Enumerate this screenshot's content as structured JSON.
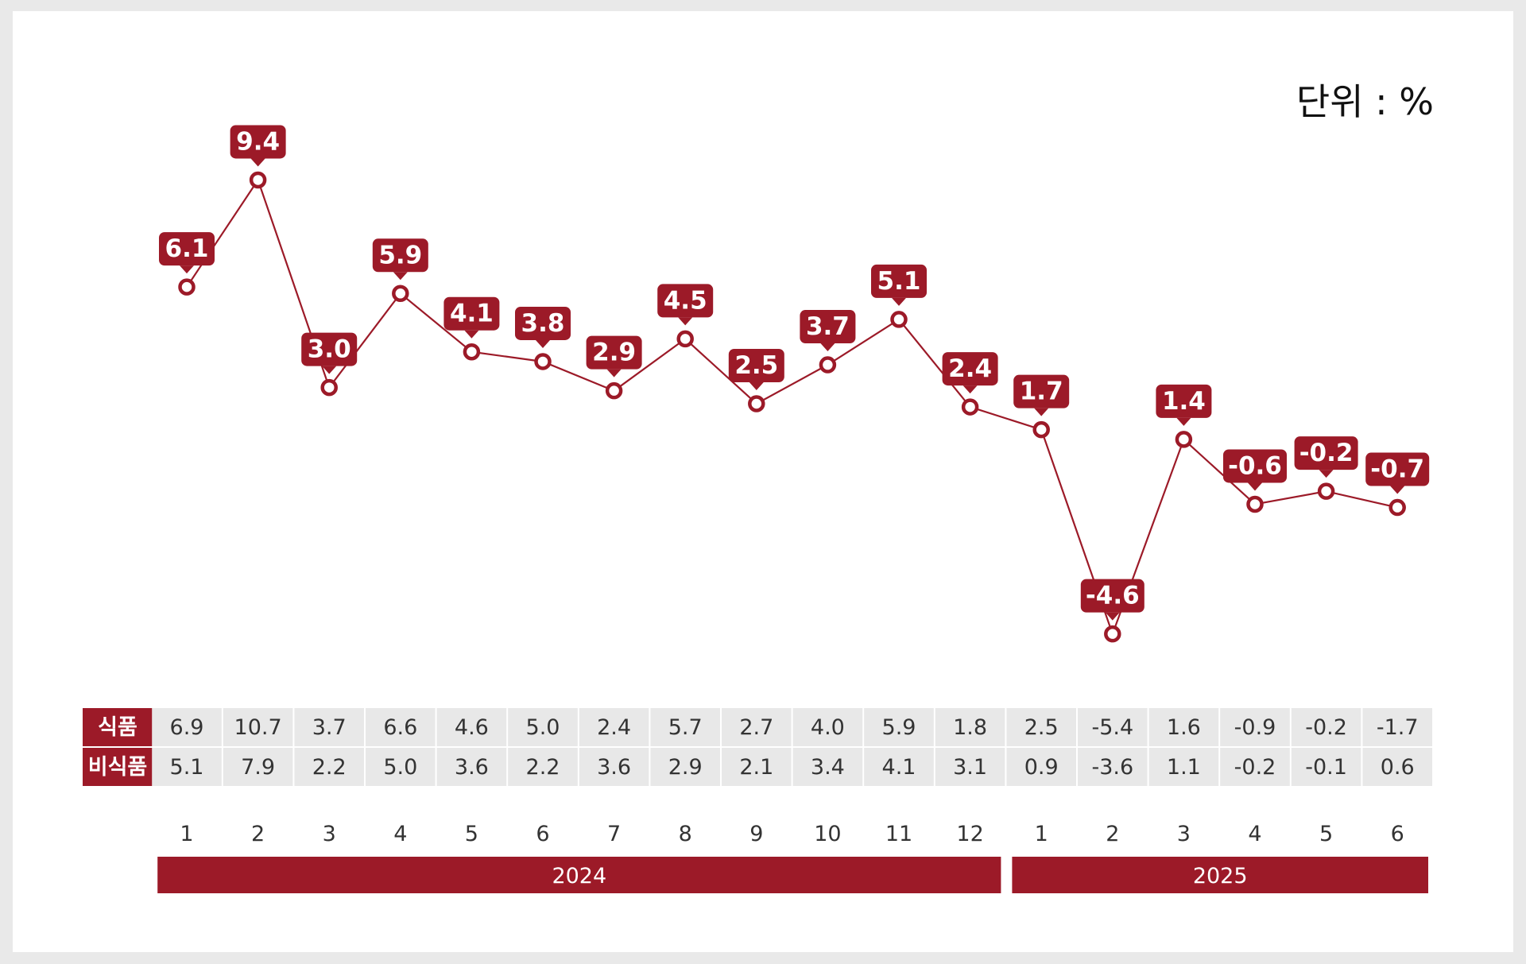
{
  "unit": "단위 : %",
  "colors": {
    "accent": "#9c1a28",
    "cell_bg": "#e8e8e8",
    "line": "#9c1a28",
    "text": "#333333",
    "background": "#ffffff"
  },
  "chart_data": {
    "type": "line",
    "categories": [
      "1",
      "2",
      "3",
      "4",
      "5",
      "6",
      "7",
      "8",
      "9",
      "10",
      "11",
      "12",
      "1",
      "2",
      "3",
      "4",
      "5",
      "6"
    ],
    "series": [
      {
        "values": [
          6.1,
          9.4,
          3.0,
          5.9,
          4.1,
          3.8,
          2.9,
          4.5,
          2.5,
          3.7,
          5.1,
          2.4,
          1.7,
          -4.6,
          1.4,
          -0.6,
          -0.2,
          -0.7
        ]
      }
    ],
    "years": [
      {
        "label": "2024",
        "start": 0,
        "end": 11
      },
      {
        "label": "2025",
        "start": 12,
        "end": 17
      }
    ],
    "table": [
      {
        "label": "식품",
        "values": [
          "6.9",
          "10.7",
          "3.7",
          "6.6",
          "4.6",
          "5.0",
          "2.4",
          "5.7",
          "2.7",
          "4.0",
          "5.9",
          "1.8",
          "2.5",
          "-5.4",
          "1.6",
          "-0.9",
          "-0.2",
          "-1.7"
        ]
      },
      {
        "label": "비식품",
        "values": [
          "5.1",
          "7.9",
          "2.2",
          "5.0",
          "3.6",
          "2.2",
          "3.6",
          "2.9",
          "2.1",
          "3.4",
          "4.1",
          "3.1",
          "0.9",
          "-3.6",
          "1.1",
          "-0.2",
          "-0.1",
          "0.6"
        ]
      }
    ],
    "grid": false,
    "legend": "none"
  }
}
